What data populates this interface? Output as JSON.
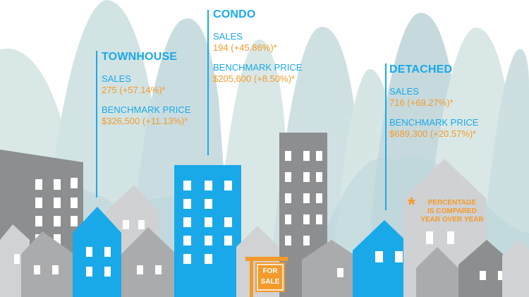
{
  "townhouse": {
    "title": "TOWNHOUSE",
    "sales_label": "SALES",
    "sales_value": "275 (+57.14%)*",
    "benchmark_label": "BENCHMARK PRICE",
    "benchmark_value": "$326,500 (+11.13%)*"
  },
  "condo": {
    "title": "CONDO",
    "sales_label": "SALES",
    "sales_value": "194 (+45.86%)*",
    "benchmark_label": "BENCHMARK PRICE",
    "benchmark_value": "$205,600 (+8.50%)*"
  },
  "detached": {
    "title": "DETACHED",
    "sales_label": "SALES",
    "sales_value": "716 (+69.27%)*",
    "benchmark_label": "BENCHMARK PRICE",
    "benchmark_value": "$689,300 (+20.57%)*"
  },
  "footnote": {
    "symbol": "*",
    "line1": "PERCENTAGE",
    "line2": "IS COMPARED",
    "line3": "YEAR OVER YEAR"
  },
  "sign": {
    "line1": "FOR",
    "line2": "SALE"
  },
  "colors": {
    "accent_blue": "#1aa9e8",
    "accent_orange": "#f39a2b",
    "building_gray": "#8c8e90",
    "house_light_gray": "#d0d2d4"
  }
}
